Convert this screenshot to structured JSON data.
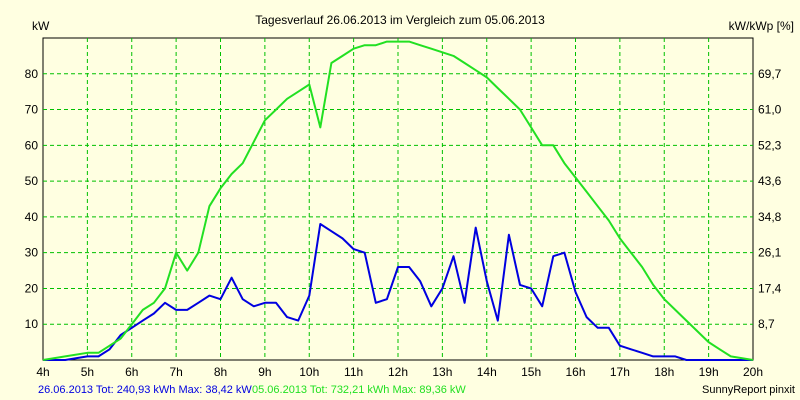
{
  "chart_data": {
    "type": "line",
    "title": "Tagesverlauf 26.06.2013 im Vergleich zum 05.06.2013",
    "ylabel_left": "kW",
    "ylabel_right": "kW/kWp [%]",
    "x_ticks": [
      "4h",
      "5h",
      "6h",
      "7h",
      "8h",
      "9h",
      "10h",
      "11h",
      "12h",
      "13h",
      "14h",
      "15h",
      "16h",
      "17h",
      "18h",
      "19h",
      "20h"
    ],
    "y_ticks_left": [
      "10",
      "20",
      "30",
      "40",
      "50",
      "60",
      "70",
      "80"
    ],
    "y_ticks_right": [
      "8,7",
      "17,4",
      "26,1",
      "34,8",
      "43,6",
      "52,3",
      "61,0",
      "69,7"
    ],
    "xlim": [
      4,
      20
    ],
    "ylim": [
      0,
      90
    ],
    "grid": true,
    "colors": {
      "background": "#ffffe1",
      "grid": "#00c000",
      "series_1": "#0000e0",
      "series_2": "#22e022"
    },
    "series": [
      {
        "x": [
          4,
          4.5,
          5,
          5.25,
          5.5,
          5.75,
          6,
          6.25,
          6.5,
          6.75,
          7,
          7.25,
          7.5,
          7.75,
          8,
          8.25,
          8.5,
          8.75,
          9,
          9.25,
          9.5,
          9.75,
          10,
          10.25,
          10.5,
          10.75,
          11,
          11.25,
          11.5,
          11.75,
          12,
          12.25,
          12.5,
          12.75,
          13,
          13.25,
          13.5,
          13.75,
          14,
          14.25,
          14.5,
          14.75,
          15,
          15.25,
          15.5,
          15.75,
          16,
          16.25,
          16.5,
          16.75,
          17,
          17.25,
          17.5,
          17.75,
          18,
          18.25,
          18.5,
          18.75,
          19,
          19.25,
          19.5,
          20
        ],
        "values": [
          0,
          0,
          1,
          1,
          3,
          7,
          9,
          11,
          13,
          16,
          14,
          14,
          16,
          18,
          17,
          23,
          17,
          15,
          16,
          16,
          12,
          11,
          18,
          38,
          36,
          34,
          31,
          30,
          16,
          17,
          26,
          26,
          22,
          15,
          20,
          29,
          16,
          37,
          22,
          11,
          35,
          21,
          20,
          15,
          29,
          30,
          19,
          12,
          9,
          9,
          4,
          3,
          2,
          1,
          1,
          1,
          0,
          0,
          0,
          0,
          0,
          0
        ]
      },
      {
        "x": [
          4,
          4.5,
          5,
          5.25,
          5.5,
          5.75,
          6,
          6.25,
          6.5,
          6.75,
          7,
          7.25,
          7.5,
          7.75,
          8,
          8.25,
          8.5,
          8.75,
          9,
          9.25,
          9.5,
          9.75,
          10,
          10.25,
          10.5,
          10.75,
          11,
          11.25,
          11.5,
          11.75,
          12,
          12.25,
          12.5,
          12.75,
          13,
          13.25,
          13.5,
          13.75,
          14,
          14.25,
          14.5,
          14.75,
          15,
          15.25,
          15.5,
          15.75,
          16,
          16.25,
          16.5,
          16.75,
          17,
          17.25,
          17.5,
          17.75,
          18,
          18.25,
          18.5,
          18.75,
          19,
          19.25,
          19.5,
          20
        ],
        "values": [
          0,
          1,
          2,
          2,
          4,
          6,
          10,
          14,
          16,
          20,
          30,
          25,
          30,
          43,
          48,
          52,
          55,
          61,
          67,
          70,
          73,
          75,
          77,
          65,
          83,
          85,
          87,
          88,
          88,
          89,
          89,
          89,
          88,
          87,
          86,
          85,
          83,
          81,
          79,
          76,
          73,
          70,
          65,
          60,
          60,
          55,
          51,
          47,
          43,
          39,
          34,
          30,
          26,
          21,
          17,
          14,
          11,
          8,
          5,
          3,
          1,
          0
        ]
      }
    ],
    "footer_series_1": "26.06.2013 Tot: 240,93 kWh Max: 38,42 kW",
    "footer_series_2": "05.06.2013 Tot: 732,21 kWh Max: 89,36 kW",
    "credit": "SunnyReport pinxit"
  }
}
